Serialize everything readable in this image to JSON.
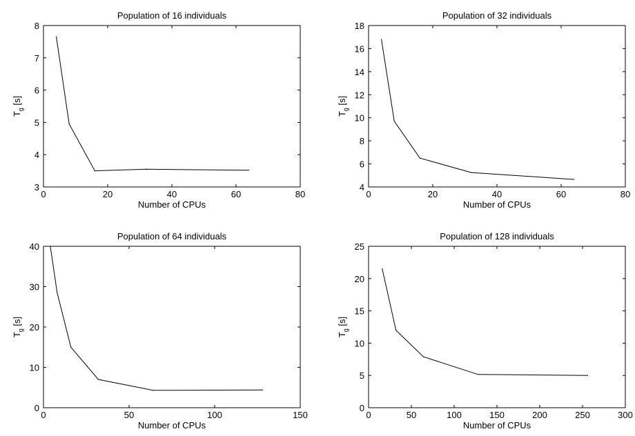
{
  "chart_data": [
    {
      "type": "line",
      "title": "Population of 16 individuals",
      "xlabel": "Number of CPUs",
      "ylabel": {
        "main": "T",
        "subscript": "g",
        "unit": " [s]"
      },
      "xlim": [
        0,
        80
      ],
      "ylim": [
        3,
        8
      ],
      "xticks": [
        0,
        20,
        40,
        60,
        80
      ],
      "yticks": [
        3,
        4,
        5,
        6,
        7,
        8
      ],
      "grid": false,
      "series": [
        {
          "x": [
            4,
            8,
            16,
            32,
            64
          ],
          "y": [
            7.65,
            4.95,
            3.5,
            3.55,
            3.52
          ]
        }
      ]
    },
    {
      "type": "line",
      "title": "Population of 32 individuals",
      "xlabel": "Number of CPUs",
      "ylabel": {
        "main": "T",
        "subscript": "g",
        "unit": " [s]"
      },
      "xlim": [
        0,
        80
      ],
      "ylim": [
        4,
        18
      ],
      "xticks": [
        0,
        20,
        40,
        60,
        80
      ],
      "yticks": [
        4,
        6,
        8,
        10,
        12,
        14,
        16,
        18
      ],
      "grid": false,
      "series": [
        {
          "x": [
            4,
            8,
            16,
            32,
            64
          ],
          "y": [
            16.8,
            9.7,
            6.5,
            5.25,
            4.65
          ]
        }
      ]
    },
    {
      "type": "line",
      "title": "Population of 64 individuals",
      "xlabel": "Number of CPUs",
      "ylabel": {
        "main": "T",
        "subscript": "g",
        "unit": " [s]"
      },
      "xlim": [
        0,
        150
      ],
      "ylim": [
        0,
        40
      ],
      "xticks": [
        0,
        50,
        100,
        150
      ],
      "yticks": [
        0,
        10,
        20,
        30,
        40
      ],
      "grid": false,
      "series": [
        {
          "x": [
            4,
            8,
            16,
            32,
            64,
            128
          ],
          "y": [
            40,
            28.5,
            15,
            7,
            4.3,
            4.4
          ]
        }
      ]
    },
    {
      "type": "line",
      "title": "Population of 128 individuals",
      "xlabel": "Number of CPUs",
      "ylabel": {
        "main": "T",
        "subscript": "g",
        "unit": " [s]"
      },
      "xlim": [
        0,
        300
      ],
      "ylim": [
        0,
        25
      ],
      "xticks": [
        0,
        50,
        100,
        150,
        200,
        250,
        300
      ],
      "yticks": [
        0,
        5,
        10,
        15,
        20,
        25
      ],
      "grid": false,
      "series": [
        {
          "x": [
            16,
            32,
            64,
            128,
            256
          ],
          "y": [
            21.5,
            12,
            7.9,
            5.15,
            5.0
          ]
        }
      ]
    }
  ]
}
